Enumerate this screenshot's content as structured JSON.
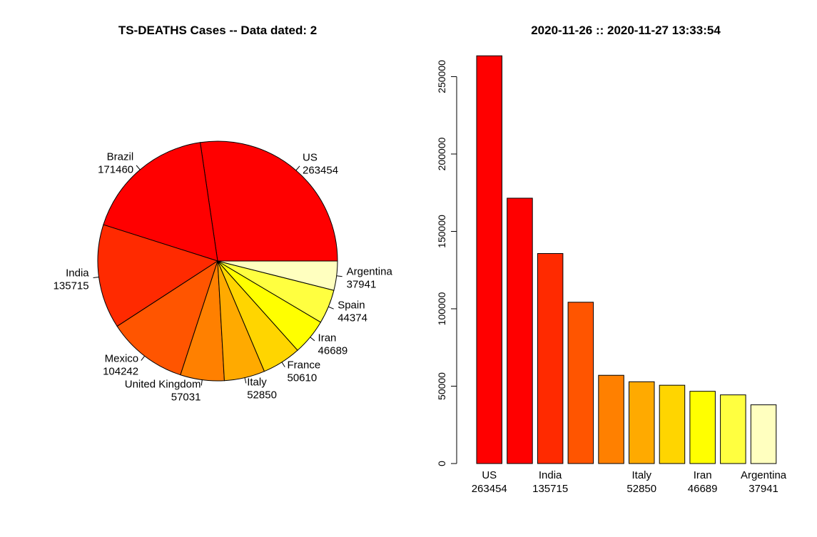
{
  "titles": {
    "left": "TS-DEATHS Cases  -- Data dated:  2",
    "right": "2020-11-26  ::  2020-11-27 13:33:54"
  },
  "chart_data": [
    {
      "type": "pie",
      "categories": [
        "US",
        "Brazil",
        "India",
        "Mexico",
        "United Kingdom",
        "Italy",
        "France",
        "Iran",
        "Spain",
        "Argentina"
      ],
      "values": [
        263454,
        171460,
        135715,
        104242,
        57031,
        52850,
        50610,
        46689,
        44374,
        37941
      ],
      "colors": [
        "#FF0000",
        "#FF0000",
        "#FF2A00",
        "#FF5500",
        "#FF8000",
        "#FFAA00",
        "#FFD500",
        "#FFFF00",
        "#FFFF40",
        "#FFFFBF"
      ],
      "start": "0 degrees (3 o'clock), counter-clockwise"
    },
    {
      "type": "bar",
      "categories": [
        "US",
        "Brazil",
        "India",
        "Mexico",
        "United Kingdom",
        "Italy",
        "France",
        "Iran",
        "Spain",
        "Argentina"
      ],
      "values": [
        263454,
        171460,
        135715,
        104242,
        57031,
        52850,
        50610,
        46689,
        44374,
        37941
      ],
      "colors": [
        "#FF0000",
        "#FF0000",
        "#FF2A00",
        "#FF5500",
        "#FF8000",
        "#FFAA00",
        "#FFD500",
        "#FFFF00",
        "#FFFF40",
        "#FFFFBF"
      ],
      "x_tick_labels_shown": [
        "US",
        "India",
        "Italy",
        "Iran",
        "Argentina"
      ],
      "yticks": [
        0,
        50000,
        100000,
        150000,
        200000,
        250000
      ],
      "ylim": [
        0,
        270000
      ]
    }
  ]
}
